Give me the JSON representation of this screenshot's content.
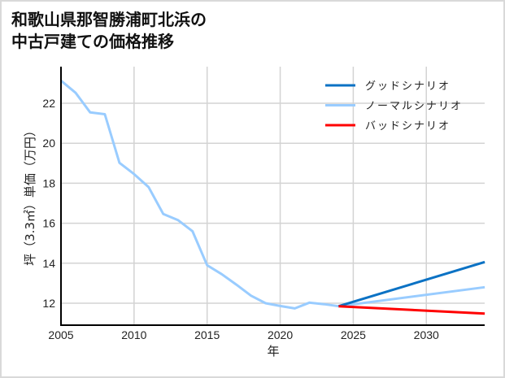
{
  "title": {
    "line1": "和歌山県那智勝浦町北浜の",
    "line2": "中古戸建ての価格推移"
  },
  "colors": {
    "good": "#0b72c4",
    "normal": "#99ccff",
    "bad": "#ff0000",
    "grid": "#d3d3d3",
    "axis": "#000000"
  },
  "chart_data": {
    "type": "line",
    "title": "和歌山県那智勝浦町北浜の中古戸建ての価格推移",
    "xlabel": "年",
    "ylabel": "坪（3.3㎡）単価（万円）",
    "xlim": [
      2005,
      2034
    ],
    "ylim": [
      11,
      23.7
    ],
    "xticks": [
      2005,
      2010,
      2015,
      2020,
      2025,
      2030
    ],
    "yticks": [
      12,
      14,
      16,
      18,
      20,
      22
    ],
    "grid": true,
    "legend_position": "upper right",
    "legend": [
      "グッドシナリオ",
      "ノーマルシナリオ",
      "バッドシナリオ"
    ],
    "series": [
      {
        "name": "ノーマルシナリオ",
        "color": "#99ccff",
        "x": [
          2005,
          2006,
          2007,
          2008,
          2009,
          2010,
          2011,
          2012,
          2013,
          2014,
          2015,
          2016,
          2017,
          2018,
          2019,
          2020,
          2021,
          2022,
          2023,
          2024,
          2034
        ],
        "values": [
          23.13,
          22.52,
          21.54,
          21.45,
          19.02,
          18.46,
          17.8,
          16.46,
          16.16,
          15.6,
          13.9,
          13.45,
          12.93,
          12.38,
          12.0,
          11.86,
          11.74,
          12.03,
          11.95,
          11.85,
          12.8
        ]
      },
      {
        "name": "グッドシナリオ",
        "color": "#0b72c4",
        "x": [
          2024,
          2034
        ],
        "values": [
          11.85,
          14.06
        ]
      },
      {
        "name": "バッドシナリオ",
        "color": "#ff0000",
        "x": [
          2024,
          2034
        ],
        "values": [
          11.85,
          11.48
        ]
      }
    ]
  }
}
